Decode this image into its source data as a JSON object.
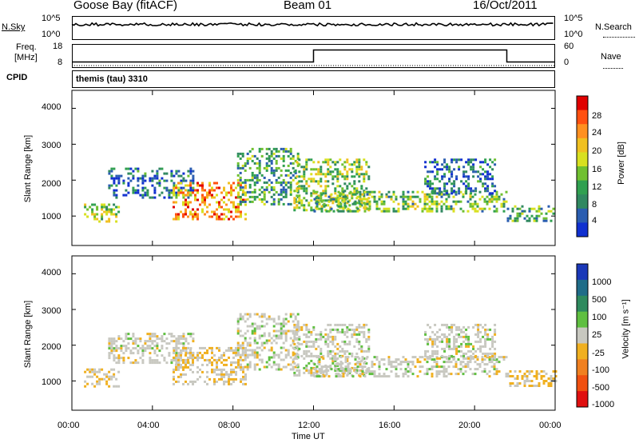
{
  "header": {
    "title": "Goose Bay (fitACF)",
    "beam": "Beam 01",
    "date": "16/Oct/2011"
  },
  "side_labels": {
    "nsky": "N.Sky",
    "nsearch": "N.Search",
    "freq_line1": "Freq.",
    "freq_line2": "[MHz]",
    "nave": "Nave",
    "cpid": "CPID",
    "cpid_value": "themis (tau) 3310"
  },
  "noise_ticks_left": [
    "10^5",
    "10^0"
  ],
  "noise_ticks_right": [
    "10^5",
    "10^0"
  ],
  "freq_ticks_left": [
    "18",
    "8"
  ],
  "freq_ticks_right": [
    "60",
    "0"
  ],
  "range_ticks": [
    "4000",
    "3000",
    "2000",
    "1000"
  ],
  "time_ticks": [
    "00:00",
    "04:00",
    "08:00",
    "12:00",
    "16:00",
    "20:00",
    "00:00"
  ],
  "xlabel": "Time UT",
  "ylabel": "Slant Range [km]",
  "power_colorbar": {
    "label": "Power [dB]",
    "ticks": [
      "28",
      "24",
      "20",
      "16",
      "12",
      "8",
      "4"
    ],
    "colors": [
      "#e00000",
      "#ff5010",
      "#ff9020",
      "#f0c020",
      "#d8e020",
      "#70c030",
      "#30a050",
      "#308860",
      "#2a5db0",
      "#1030d0"
    ]
  },
  "velocity_colorbar": {
    "label": "Velocity [m s⁻¹]",
    "ticks": [
      "1000",
      "500",
      "100",
      "25",
      "-25",
      "-100",
      "-500",
      "-1000"
    ],
    "colors": [
      "#1a38b8",
      "#1f6c88",
      "#2e8a5e",
      "#5fbf40",
      "#c8c8c0",
      "#f0b020",
      "#f08020",
      "#f05010",
      "#e01010"
    ]
  },
  "chart_data": {
    "type": "heatmap",
    "xlabel": "Time UT",
    "ylabel": "Slant Range [km]",
    "xlim_hours": [
      0,
      24
    ],
    "ylim_km": [
      180,
      4500
    ],
    "panels": [
      {
        "name": "Power",
        "unit": "dB",
        "range": [
          0,
          30
        ],
        "echo_regions": [
          {
            "t0": 0.6,
            "t1": 2.3,
            "r0": 850,
            "r1": 1350,
            "value": 14
          },
          {
            "t0": 1.8,
            "t1": 6.0,
            "r0": 1500,
            "r1": 2350,
            "value": 6
          },
          {
            "t0": 5.0,
            "t1": 8.6,
            "r0": 900,
            "r1": 1950,
            "value": 22
          },
          {
            "t0": 8.2,
            "t1": 11.2,
            "r0": 1300,
            "r1": 2900,
            "value": 10
          },
          {
            "t0": 11.0,
            "t1": 14.8,
            "r0": 1150,
            "r1": 2600,
            "value": 14
          },
          {
            "t0": 12.0,
            "t1": 21.6,
            "r0": 1100,
            "r1": 1700,
            "value": 12
          },
          {
            "t0": 17.5,
            "t1": 21.0,
            "r0": 1600,
            "r1": 2600,
            "value": 6
          },
          {
            "t0": 21.6,
            "t1": 24.0,
            "r0": 850,
            "r1": 1300,
            "value": 10
          }
        ]
      },
      {
        "name": "Velocity",
        "unit": "m s-1",
        "range": [
          -1000,
          1000
        ],
        "echo_regions": [
          {
            "t0": 0.6,
            "t1": 2.3,
            "r0": 850,
            "r1": 1350,
            "value": -120
          },
          {
            "t0": 1.8,
            "t1": 6.0,
            "r0": 1500,
            "r1": 2350,
            "value": 0
          },
          {
            "t0": 5.0,
            "t1": 8.6,
            "r0": 900,
            "r1": 1950,
            "value": -80
          },
          {
            "t0": 8.2,
            "t1": 11.2,
            "r0": 1300,
            "r1": 2900,
            "value": 0
          },
          {
            "t0": 11.0,
            "t1": 14.8,
            "r0": 1150,
            "r1": 2600,
            "value": 0
          },
          {
            "t0": 12.0,
            "t1": 21.6,
            "r0": 1100,
            "r1": 1700,
            "value": 0
          },
          {
            "t0": 17.5,
            "t1": 21.0,
            "r0": 1600,
            "r1": 2600,
            "value": 0
          },
          {
            "t0": 21.6,
            "t1": 24.0,
            "r0": 850,
            "r1": 1300,
            "value": -150
          }
        ]
      }
    ],
    "noise_sky_level": 0.65,
    "freq_mhz": [
      {
        "t0": 0,
        "t1": 12.0,
        "value": 10.5
      },
      {
        "t0": 12.0,
        "t1": 21.6,
        "value": 15.5
      },
      {
        "t0": 21.6,
        "t1": 24.0,
        "value": 10.5
      }
    ],
    "nave_level": 0.0
  }
}
